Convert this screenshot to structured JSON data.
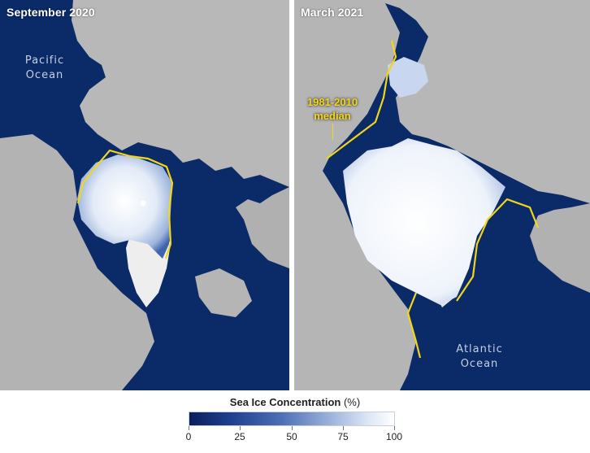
{
  "panels": {
    "left": {
      "title": "September 2020",
      "ocean_label_line1": "Pacific",
      "ocean_label_line2": "Ocean"
    },
    "right": {
      "title": "March 2021",
      "ocean_label_line1": "Atlantic",
      "ocean_label_line2": "Ocean",
      "median_label_line1": "1981-2010",
      "median_label_line2": "median"
    }
  },
  "legend": {
    "title": "Sea Ice Concentration",
    "unit": "(%)",
    "ticks": [
      "0",
      "25",
      "50",
      "75",
      "100"
    ]
  },
  "colors": {
    "ocean": "#0a2a68",
    "land": "#b3b3b3",
    "ice": "#ffffff",
    "median_line": "#f3d51a"
  }
}
